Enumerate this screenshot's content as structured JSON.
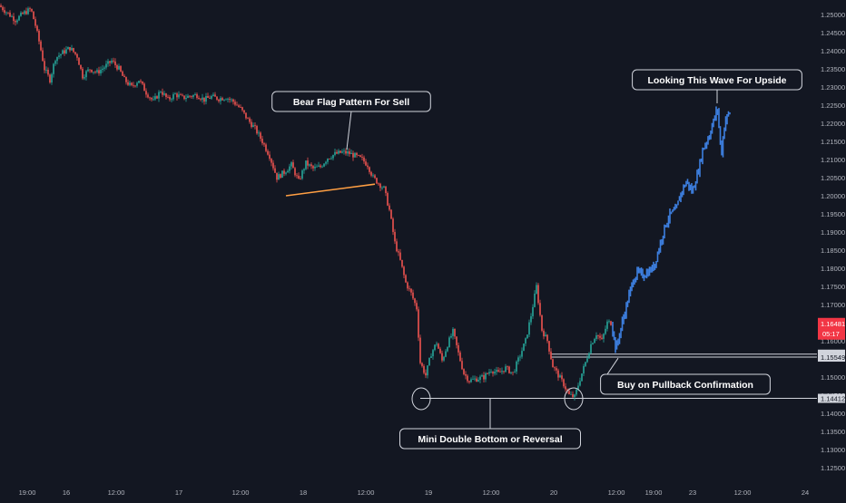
{
  "colors": {
    "background": "#131722",
    "up": "#26a69a",
    "down": "#ef5350",
    "projection": "#3d7fe0",
    "text": "#b2b5be",
    "annotation": "#ffffff",
    "trendline": "#ff9f43",
    "price_tag": "#f23645"
  },
  "chart_data": {
    "type": "candlestick",
    "grid": false,
    "legend": "none",
    "ylim": [
      1.121,
      1.2535
    ],
    "xlim": [
      0,
      900
    ],
    "price_axis": {
      "ticks": [
        "1.25000",
        "1.24500",
        "1.24000",
        "1.23500",
        "1.23000",
        "1.22500",
        "1.22000",
        "1.21500",
        "1.21000",
        "1.20500",
        "1.20000",
        "1.19500",
        "1.19000",
        "1.18500",
        "1.18000",
        "1.17500",
        "1.17000",
        "1.16500",
        "1.16000",
        "1.15500",
        "1.15000",
        "1.14500",
        "1.14000",
        "1.13500",
        "1.13000",
        "1.12500"
      ],
      "current_price": "1.16481",
      "countdown": "05:17",
      "level_tags": [
        "1.15631",
        "1.15549",
        "1.14412"
      ]
    },
    "time_axis": {
      "labels": [
        "19:00",
        "16",
        "12:00",
        "17",
        "12:00",
        "18",
        "12:00",
        "19",
        "12:00",
        "20",
        "12:00",
        "19:00",
        "23",
        "12:00",
        "24"
      ],
      "positions": [
        30,
        73,
        128,
        197,
        265,
        334,
        403,
        472,
        541,
        610,
        679,
        720,
        763,
        818,
        887
      ]
    },
    "price_path": [
      [
        0,
        1.2525
      ],
      [
        18,
        1.2485
      ],
      [
        28,
        1.2505
      ],
      [
        35,
        1.2515
      ],
      [
        40,
        1.247
      ],
      [
        45,
        1.2415
      ],
      [
        50,
        1.235
      ],
      [
        56,
        1.232
      ],
      [
        62,
        1.238
      ],
      [
        70,
        1.2395
      ],
      [
        78,
        1.2408
      ],
      [
        86,
        1.2385
      ],
      [
        92,
        1.233
      ],
      [
        100,
        1.235
      ],
      [
        108,
        1.234
      ],
      [
        116,
        1.2355
      ],
      [
        124,
        1.2372
      ],
      [
        132,
        1.235
      ],
      [
        138,
        1.232
      ],
      [
        146,
        1.23
      ],
      [
        154,
        1.232
      ],
      [
        162,
        1.2285
      ],
      [
        170,
        1.226
      ],
      [
        178,
        1.229
      ],
      [
        186,
        1.2265
      ],
      [
        194,
        1.228
      ],
      [
        202,
        1.227
      ],
      [
        210,
        1.2275
      ],
      [
        218,
        1.2278
      ],
      [
        226,
        1.2265
      ],
      [
        234,
        1.2273
      ],
      [
        242,
        1.2268
      ],
      [
        250,
        1.2272
      ],
      [
        258,
        1.226
      ],
      [
        266,
        1.224
      ],
      [
        274,
        1.221
      ],
      [
        282,
        1.2185
      ],
      [
        290,
        1.215
      ],
      [
        298,
        1.211
      ],
      [
        306,
        1.205
      ],
      [
        314,
        1.2065
      ],
      [
        322,
        1.2085
      ],
      [
        330,
        1.204
      ],
      [
        338,
        1.209
      ],
      [
        346,
        1.2075
      ],
      [
        354,
        1.208
      ],
      [
        362,
        1.2105
      ],
      [
        370,
        1.2115
      ],
      [
        378,
        1.212
      ],
      [
        385,
        1.2118
      ],
      [
        392,
        1.211
      ],
      [
        400,
        1.21
      ],
      [
        406,
        1.2085
      ],
      [
        412,
        1.205
      ],
      [
        418,
        1.2035
      ],
      [
        424,
        1.202
      ],
      [
        430,
        1.196
      ],
      [
        436,
        1.187
      ],
      [
        442,
        1.182
      ],
      [
        448,
        1.176
      ],
      [
        454,
        1.173
      ],
      [
        460,
        1.169
      ],
      [
        464,
        1.154
      ],
      [
        470,
        1.1505
      ],
      [
        476,
        1.1565
      ],
      [
        482,
        1.1595
      ],
      [
        488,
        1.1545
      ],
      [
        494,
        1.159
      ],
      [
        500,
        1.1625
      ],
      [
        506,
        1.1565
      ],
      [
        512,
        1.151
      ],
      [
        518,
        1.149
      ],
      [
        526,
        1.1495
      ],
      [
        534,
        1.15
      ],
      [
        542,
        1.152
      ],
      [
        550,
        1.151
      ],
      [
        558,
        1.1525
      ],
      [
        566,
        1.151
      ],
      [
        574,
        1.156
      ],
      [
        580,
        1.16
      ],
      [
        586,
        1.167
      ],
      [
        592,
        1.175
      ],
      [
        598,
        1.163
      ],
      [
        604,
        1.16
      ],
      [
        610,
        1.153
      ],
      [
        616,
        1.1505
      ],
      [
        622,
        1.148
      ],
      [
        628,
        1.145
      ],
      [
        634,
        1.1445
      ],
      [
        640,
        1.1495
      ],
      [
        646,
        1.154
      ],
      [
        652,
        1.159
      ],
      [
        658,
        1.162
      ],
      [
        664,
        1.16
      ],
      [
        670,
        1.165
      ],
      [
        675,
        1.165
      ]
    ],
    "projection_path": [
      [
        675,
        1.165
      ],
      [
        680,
        1.1575
      ],
      [
        686,
        1.164
      ],
      [
        692,
        1.17
      ],
      [
        698,
        1.176
      ],
      [
        704,
        1.179
      ],
      [
        710,
        1.178
      ],
      [
        716,
        1.179
      ],
      [
        722,
        1.1805
      ],
      [
        728,
        1.186
      ],
      [
        734,
        1.1915
      ],
      [
        740,
        1.195
      ],
      [
        746,
        1.196
      ],
      [
        752,
        1.201
      ],
      [
        758,
        1.204
      ],
      [
        764,
        1.201
      ],
      [
        770,
        1.206
      ],
      [
        776,
        1.213
      ],
      [
        782,
        1.216
      ],
      [
        788,
        1.221
      ],
      [
        792,
        1.224
      ],
      [
        796,
        1.211
      ],
      [
        800,
        1.2205
      ],
      [
        805,
        1.223
      ]
    ],
    "trendline": [
      [
        315,
        1.2
      ],
      [
        413,
        1.2032
      ]
    ],
    "levels": [
      {
        "value": 1.15631,
        "from": 607
      },
      {
        "value": 1.15549,
        "from": 607
      },
      {
        "value": 1.14412,
        "from": 463
      }
    ],
    "circles": [
      [
        464,
        1.144
      ],
      [
        632,
        1.144
      ]
    ],
    "annotations": [
      {
        "text": "Bear Flag Pattern For Sell",
        "x": 387,
        "y": 1.226,
        "tip_x": 382,
        "tip_y": 1.2128,
        "pointer": "down"
      },
      {
        "text": "Looking This Wave For Upside",
        "x": 790,
        "y": 1.232,
        "tip_x": 790,
        "tip_y": 1.2255,
        "pointer": "down"
      },
      {
        "text": "Buy on Pullback Confirmation",
        "x": 755,
        "y": 1.148,
        "tip_x": 681,
        "tip_y": 1.1552,
        "pointer": "left"
      },
      {
        "text": "Mini Double Bottom or Reversal",
        "x": 540,
        "y": 1.133,
        "tip_x": 540,
        "tip_y": 1.144,
        "pointer": "up"
      }
    ]
  }
}
